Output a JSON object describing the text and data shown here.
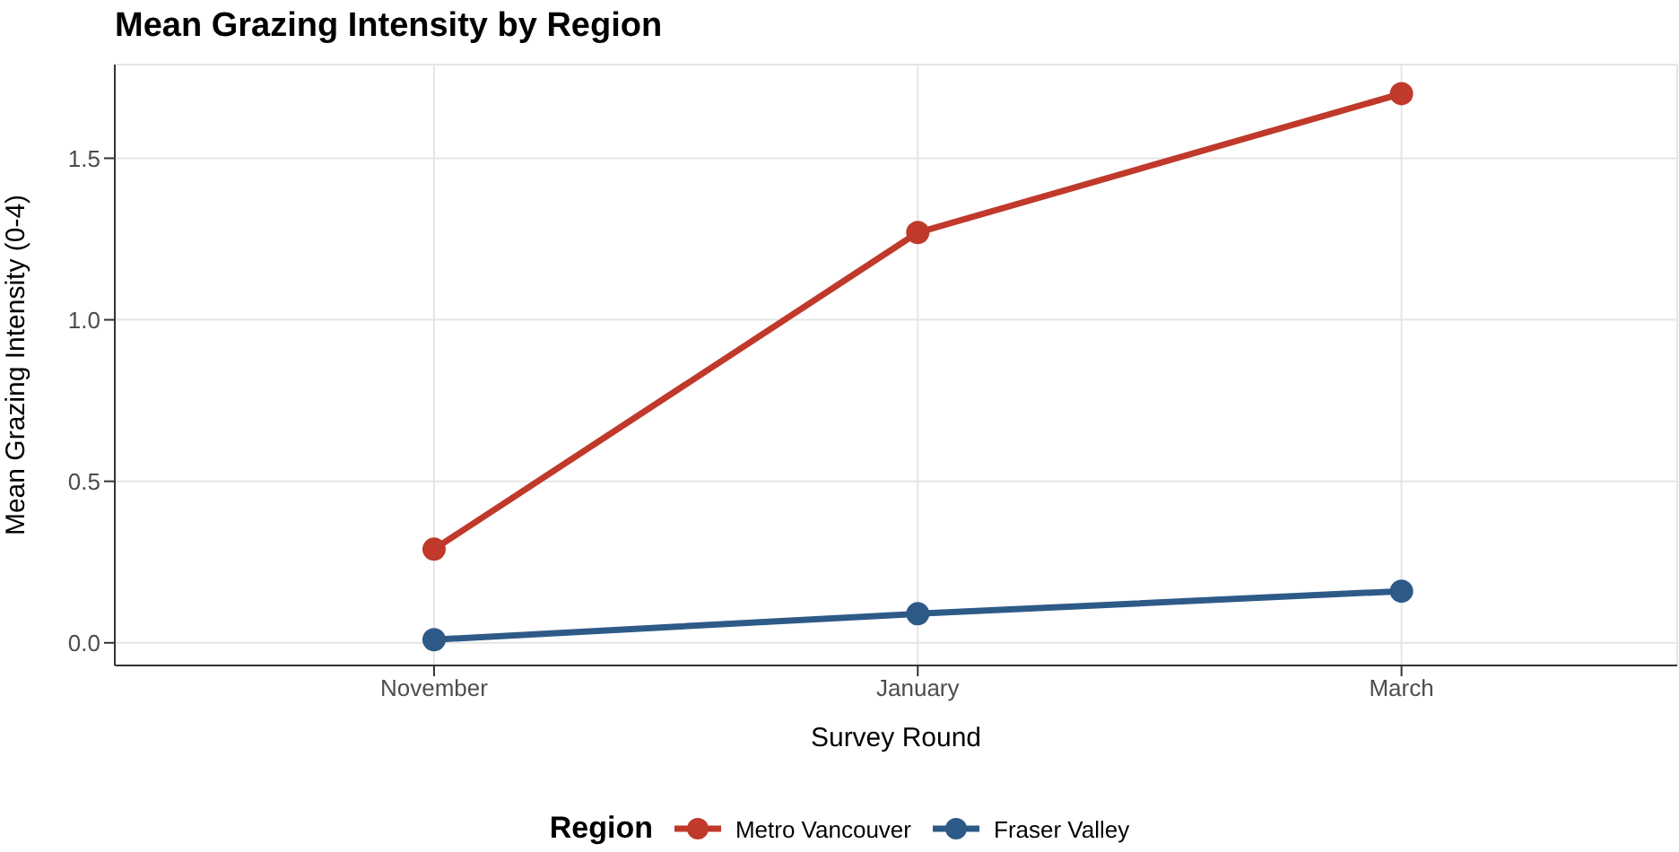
{
  "chart_data": {
    "type": "line",
    "title": "Mean Grazing Intensity by Region",
    "xlabel": "Survey Round",
    "ylabel": "Mean Grazing Intensity (0-4)",
    "legend_title": "Region",
    "categories": [
      "November",
      "January",
      "March"
    ],
    "series": [
      {
        "name": "Metro Vancouver",
        "color": "#c0392b",
        "values": [
          0.29,
          1.27,
          1.7
        ]
      },
      {
        "name": "Fraser Valley",
        "color": "#2e5a88",
        "values": [
          0.01,
          0.09,
          0.16
        ]
      }
    ],
    "ylim": [
      -0.07,
      1.79
    ],
    "yticks": [
      {
        "value": 0,
        "label": "0.0"
      },
      {
        "value": 0.5,
        "label": "0.5"
      },
      {
        "value": 1,
        "label": "1.0"
      },
      {
        "value": 1.5,
        "label": "1.5"
      }
    ],
    "grid": true,
    "legend": "bottom",
    "marker": "circle",
    "line_style": "solid"
  }
}
